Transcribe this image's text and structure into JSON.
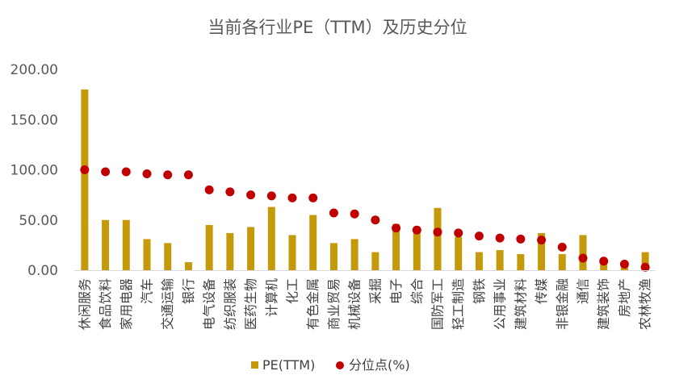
{
  "chart_data": {
    "type": "bar",
    "title": "当前各行业PE（TTM）及历史分位",
    "categories": [
      "休闲服务",
      "食品饮料",
      "家用电器",
      "汽车",
      "交通运输",
      "银行",
      "电气设备",
      "纺织服装",
      "医药生物",
      "计算机",
      "化工",
      "有色金属",
      "商业贸易",
      "机械设备",
      "采掘",
      "电子",
      "综合",
      "国防军工",
      "轻工制造",
      "钢铁",
      "公用事业",
      "建筑材料",
      "传媒",
      "非银金融",
      "通信",
      "建筑装饰",
      "房地产",
      "农林牧渔"
    ],
    "series": [
      {
        "name": "PE(TTM)",
        "mark": "bar",
        "color": "#C59A0A",
        "values": [
          180,
          50,
          50,
          31,
          27,
          8,
          45,
          37,
          43,
          63,
          35,
          55,
          27,
          31,
          18,
          46,
          38,
          62,
          33,
          18,
          20,
          16,
          37,
          16,
          35,
          7,
          5,
          18
        ]
      },
      {
        "name": "分位点(%)",
        "mark": "dot",
        "color": "#C00000",
        "values": [
          100,
          98,
          98,
          96,
          95,
          95,
          80,
          78,
          75,
          74,
          72,
          72,
          57,
          56,
          50,
          42,
          40,
          38,
          37,
          34,
          32,
          31,
          30,
          23,
          12,
          9,
          6,
          3
        ]
      }
    ],
    "yticks": [
      "0.00",
      "50.00",
      "100.00",
      "150.00",
      "200.00"
    ],
    "ylim": [
      0,
      200
    ],
    "xlabel": "",
    "ylabel": "",
    "grid": false,
    "legend_position": "bottom"
  }
}
